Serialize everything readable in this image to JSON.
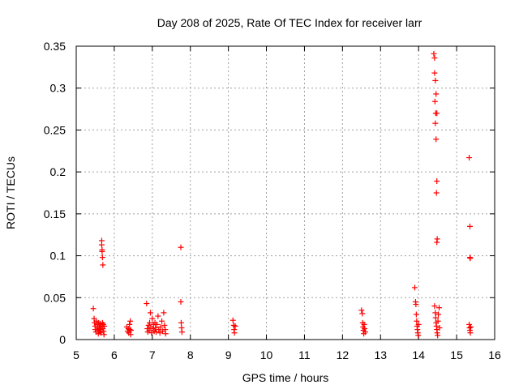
{
  "chart_data": {
    "type": "scatter",
    "title": "Day 208 of 2025, Rate Of TEC Index for receiver larr",
    "xlabel": "GPS time / hours",
    "ylabel": "ROTI / TECUs",
    "xlim": [
      5,
      16
    ],
    "ylim": [
      0,
      0.35
    ],
    "xticks": [
      "5",
      "6",
      "7",
      "8",
      "9",
      "10",
      "11",
      "12",
      "13",
      "14",
      "15",
      "16"
    ],
    "yticks": [
      "0",
      "0.05",
      "0.1",
      "0.15",
      "0.2",
      "0.25",
      "0.3",
      "0.35"
    ],
    "grid": true,
    "marker": "plus",
    "color": "#ff0000",
    "series": [
      {
        "points": [
          [
            5.45,
            0.037
          ],
          [
            5.47,
            0.025
          ],
          [
            5.48,
            0.02
          ],
          [
            5.5,
            0.016
          ],
          [
            5.5,
            0.012
          ],
          [
            5.52,
            0.009
          ],
          [
            5.53,
            0.022
          ],
          [
            5.55,
            0.014
          ],
          [
            5.56,
            0.018
          ],
          [
            5.57,
            0.011
          ],
          [
            5.58,
            0.007
          ],
          [
            5.59,
            0.02
          ],
          [
            5.6,
            0.013
          ],
          [
            5.61,
            0.016
          ],
          [
            5.62,
            0.009
          ],
          [
            5.63,
            0.019
          ],
          [
            5.64,
            0.012
          ],
          [
            5.65,
            0.008
          ],
          [
            5.66,
            0.015
          ],
          [
            5.67,
            0.118
          ],
          [
            5.67,
            0.113
          ],
          [
            5.68,
            0.107
          ],
          [
            5.68,
            0.105
          ],
          [
            5.69,
            0.098
          ],
          [
            5.7,
            0.089
          ],
          [
            5.69,
            0.02
          ],
          [
            5.7,
            0.013
          ],
          [
            5.71,
            0.018
          ],
          [
            5.72,
            0.01
          ],
          [
            5.73,
            0.006
          ],
          [
            5.74,
            0.016
          ],
          [
            6.33,
            0.015
          ],
          [
            6.35,
            0.01
          ],
          [
            6.37,
            0.013
          ],
          [
            6.38,
            0.008
          ],
          [
            6.4,
            0.018
          ],
          [
            6.41,
            0.012
          ],
          [
            6.42,
            0.022
          ],
          [
            6.43,
            0.006
          ],
          [
            6.44,
            0.011
          ],
          [
            6.85,
            0.043
          ],
          [
            6.87,
            0.013
          ],
          [
            6.88,
            0.009
          ],
          [
            6.9,
            0.017
          ],
          [
            6.92,
            0.011
          ],
          [
            6.93,
            0.02
          ],
          [
            6.95,
            0.032
          ],
          [
            6.96,
            0.015
          ],
          [
            6.98,
            0.008
          ],
          [
            7.0,
            0.025
          ],
          [
            7.02,
            0.013
          ],
          [
            7.03,
            0.018
          ],
          [
            7.05,
            0.01
          ],
          [
            7.07,
            0.02
          ],
          [
            7.08,
            0.014
          ],
          [
            7.1,
            0.009
          ],
          [
            7.12,
            0.018
          ],
          [
            7.15,
            0.028
          ],
          [
            7.17,
            0.012
          ],
          [
            7.2,
            0.008
          ],
          [
            7.22,
            0.015
          ],
          [
            7.25,
            0.022
          ],
          [
            7.27,
            0.01
          ],
          [
            7.3,
            0.032
          ],
          [
            7.32,
            0.017
          ],
          [
            7.34,
            0.012
          ],
          [
            7.35,
            0.007
          ],
          [
            7.75,
            0.11
          ],
          [
            7.75,
            0.045
          ],
          [
            7.76,
            0.02
          ],
          [
            7.77,
            0.014
          ],
          [
            7.78,
            0.009
          ],
          [
            9.12,
            0.023
          ],
          [
            9.14,
            0.017
          ],
          [
            9.15,
            0.012
          ],
          [
            9.16,
            0.008
          ],
          [
            9.18,
            0.016
          ],
          [
            12.5,
            0.035
          ],
          [
            12.52,
            0.031
          ],
          [
            12.53,
            0.02
          ],
          [
            12.54,
            0.015
          ],
          [
            12.55,
            0.011
          ],
          [
            12.56,
            0.007
          ],
          [
            12.57,
            0.018
          ],
          [
            12.58,
            0.013
          ],
          [
            12.6,
            0.009
          ],
          [
            13.9,
            0.062
          ],
          [
            13.92,
            0.045
          ],
          [
            13.93,
            0.042
          ],
          [
            13.94,
            0.03
          ],
          [
            13.95,
            0.022
          ],
          [
            13.96,
            0.016
          ],
          [
            13.97,
            0.012
          ],
          [
            13.98,
            0.008
          ],
          [
            13.99,
            0.005
          ],
          [
            14.0,
            0.018
          ],
          [
            14.4,
            0.341
          ],
          [
            14.42,
            0.336
          ],
          [
            14.42,
            0.318
          ],
          [
            14.44,
            0.309
          ],
          [
            14.43,
            0.284
          ],
          [
            14.46,
            0.293
          ],
          [
            14.45,
            0.27
          ],
          [
            14.48,
            0.27
          ],
          [
            14.44,
            0.258
          ],
          [
            14.46,
            0.239
          ],
          [
            14.48,
            0.189
          ],
          [
            14.47,
            0.175
          ],
          [
            14.49,
            0.12
          ],
          [
            14.48,
            0.116
          ],
          [
            14.42,
            0.04
          ],
          [
            14.44,
            0.032
          ],
          [
            14.45,
            0.026
          ],
          [
            14.46,
            0.02
          ],
          [
            14.47,
            0.016
          ],
          [
            14.48,
            0.012
          ],
          [
            14.49,
            0.008
          ],
          [
            14.5,
            0.005
          ],
          [
            14.51,
            0.022
          ],
          [
            14.52,
            0.03
          ],
          [
            14.54,
            0.038
          ],
          [
            14.55,
            0.014
          ],
          [
            15.33,
            0.217
          ],
          [
            15.35,
            0.135
          ],
          [
            15.35,
            0.098
          ],
          [
            15.36,
            0.097
          ],
          [
            15.33,
            0.018
          ],
          [
            15.34,
            0.014
          ],
          [
            15.35,
            0.011
          ],
          [
            15.36,
            0.008
          ],
          [
            15.37,
            0.015
          ]
        ]
      }
    ]
  }
}
